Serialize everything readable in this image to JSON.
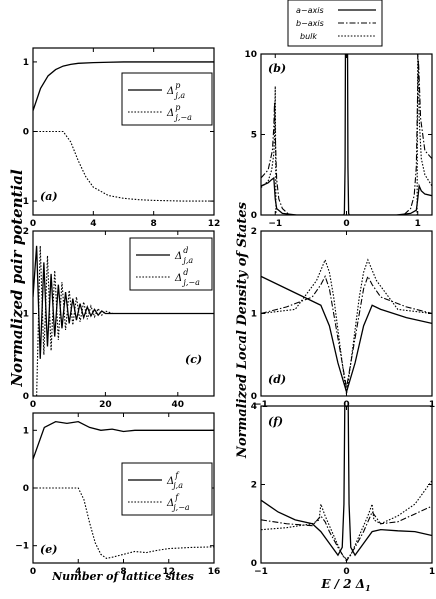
{
  "figure": {
    "left_ylabel": "Normalized pair potential",
    "left_xlabel": "Number of lattice sites",
    "right_ylabel": "Normalized Local Density of States",
    "right_xlabel": "E / 2 Δ",
    "right_xlabel_sub": "1"
  },
  "top_legend": {
    "entries": [
      {
        "label": "a−axis",
        "style": "solid"
      },
      {
        "label": "b−axis",
        "style": "dashdot"
      },
      {
        "label": "bulk",
        "style": "dotted"
      }
    ]
  },
  "chart_data": [
    {
      "id": "a",
      "type": "line",
      "panel_label": "(a)",
      "xlim": [
        0,
        12
      ],
      "ylim": [
        -1.2,
        1.2
      ],
      "xticks": [
        0,
        4,
        8,
        12
      ],
      "yticks": [
        -1,
        0,
        1
      ],
      "legend": [
        {
          "symbol": "Δ",
          "sup": "p",
          "sub": "j,a",
          "style": "solid"
        },
        {
          "symbol": "Δ",
          "sup": "p",
          "sub": "j,−a",
          "style": "dotted"
        }
      ],
      "series": [
        {
          "style": "solid",
          "x": [
            0,
            0.5,
            1,
            1.5,
            2,
            2.5,
            3,
            4,
            5,
            6,
            8,
            10,
            12
          ],
          "y": [
            0.3,
            0.62,
            0.8,
            0.89,
            0.94,
            0.965,
            0.98,
            0.99,
            0.995,
            1,
            1,
            1,
            1
          ]
        },
        {
          "style": "dotted",
          "x": [
            0,
            0.5,
            1,
            1.5,
            2,
            2.5,
            3,
            3.5,
            4,
            5,
            6,
            7,
            8,
            10,
            12
          ],
          "y": [
            0,
            0,
            0,
            0,
            0,
            -0.15,
            -0.42,
            -0.65,
            -0.8,
            -0.92,
            -0.96,
            -0.98,
            -0.99,
            -1,
            -1
          ]
        }
      ]
    },
    {
      "id": "b",
      "type": "line",
      "panel_label": "(b)",
      "xlim": [
        -1.2,
        1.2
      ],
      "ylim": [
        0,
        10
      ],
      "xticks": [
        -1,
        0,
        1
      ],
      "yticks": [
        0,
        5,
        10
      ],
      "series": [
        {
          "style": "solid",
          "x": [
            -1.2,
            -1.1,
            -1.05,
            -1.02,
            -1.0,
            -0.98,
            -0.9,
            -0.7,
            -0.5,
            -0.3,
            -0.1,
            -0.04,
            -0.03,
            -0.02,
            -0.015,
            -0.01,
            0,
            0.01,
            0.015,
            0.02,
            0.03,
            0.04,
            0.1,
            0.3,
            0.5,
            0.7,
            0.9,
            0.98,
            1.0,
            1.02,
            1.05,
            1.1,
            1.2
          ],
          "y": [
            1.8,
            2.0,
            2.2,
            2.3,
            1.0,
            0.4,
            0.1,
            0,
            0,
            0,
            0,
            0,
            0.1,
            3,
            10,
            10,
            10,
            10,
            10,
            3,
            0.1,
            0,
            0,
            0,
            0,
            0,
            0.1,
            0.3,
            1.0,
            1.8,
            1.5,
            1.3,
            1.2
          ]
        },
        {
          "style": "dashdot",
          "x": [
            -1.2,
            -1.1,
            -1.04,
            -1.02,
            -1.01,
            -1.0,
            -0.98,
            -0.95,
            -0.9,
            -0.8,
            -0.6,
            -0.3,
            0,
            0.3,
            0.6,
            0.8,
            0.9,
            0.95,
            0.98,
            1.0,
            1.01,
            1.02,
            1.04,
            1.1,
            1.2
          ],
          "y": [
            2.3,
            2.8,
            4.0,
            5.5,
            7.0,
            5.0,
            2.2,
            1.0,
            0.4,
            0,
            0,
            0,
            0,
            0,
            0,
            0,
            0.4,
            1.2,
            3.0,
            8.0,
            9.6,
            8.5,
            6.0,
            4.0,
            3.5
          ]
        },
        {
          "style": "dotted",
          "x": [
            -1.2,
            -1.1,
            -1.05,
            -1.02,
            -1.01,
            -1.0,
            -0.99,
            -0.98,
            -0.95,
            -0.9,
            -0.5,
            0,
            0.5,
            0.9,
            0.95,
            0.98,
            0.99,
            1.0,
            1.01,
            1.02,
            1.05,
            1.1,
            1.2
          ],
          "y": [
            1.7,
            2.1,
            2.8,
            3.8,
            5.0,
            8.0,
            0,
            0,
            0,
            0,
            0,
            0,
            0,
            0,
            0,
            0,
            0,
            10,
            9.0,
            6.0,
            3.5,
            2.5,
            1.8
          ]
        }
      ]
    },
    {
      "id": "c",
      "type": "line",
      "panel_label": "(c)",
      "xlim": [
        0,
        50
      ],
      "ylim": [
        0,
        2
      ],
      "xticks": [
        0,
        20,
        40
      ],
      "yticks": [
        0,
        1,
        2
      ],
      "legend": [
        {
          "symbol": "Δ",
          "sup": "d",
          "sub": "j,a",
          "style": "solid"
        },
        {
          "symbol": "Δ",
          "sup": "d",
          "sub": "j,−a",
          "style": "dotted"
        }
      ],
      "series": [
        {
          "style": "solid",
          "x": [
            0,
            1,
            2,
            3,
            4,
            5,
            6,
            7,
            8,
            9,
            10,
            11,
            12,
            13,
            14,
            15,
            16,
            17,
            18,
            19,
            20,
            22,
            25,
            30,
            40,
            50
          ],
          "y": [
            1.2,
            1.82,
            0.45,
            1.62,
            0.6,
            1.48,
            0.72,
            1.35,
            0.82,
            1.26,
            0.88,
            1.18,
            0.92,
            1.12,
            0.95,
            1.08,
            0.97,
            1.05,
            0.98,
            1.03,
            1,
            1,
            1,
            1,
            1,
            1
          ]
        },
        {
          "style": "dotted",
          "x": [
            1,
            2,
            3,
            4,
            5,
            6,
            7,
            8,
            9,
            10,
            11,
            12,
            13,
            14,
            15,
            16,
            17,
            18,
            19,
            20,
            22,
            25,
            30,
            40,
            50
          ],
          "y": [
            0,
            1.82,
            0.5,
            1.7,
            0.55,
            1.52,
            0.68,
            1.38,
            0.8,
            1.28,
            0.86,
            1.2,
            0.9,
            1.14,
            0.93,
            1.09,
            0.96,
            1.06,
            0.98,
            1.03,
            1,
            1,
            1,
            1,
            1
          ]
        }
      ]
    },
    {
      "id": "d",
      "type": "line",
      "panel_label": "(d)",
      "xlim": [
        -1,
        1
      ],
      "ylim": [
        0,
        2
      ],
      "xticks": [
        -1,
        0,
        1
      ],
      "yticks": [
        0,
        1,
        2
      ],
      "series": [
        {
          "style": "solid",
          "x": [
            -1,
            -0.7,
            -0.4,
            -0.3,
            -0.2,
            -0.1,
            0,
            0.1,
            0.2,
            0.3,
            0.4,
            0.7,
            1
          ],
          "y": [
            1.45,
            1.3,
            1.15,
            1.1,
            0.85,
            0.4,
            0.05,
            0.4,
            0.85,
            1.1,
            1.05,
            0.95,
            0.88
          ]
        },
        {
          "style": "dashdot",
          "x": [
            -1,
            -0.7,
            -0.4,
            -0.3,
            -0.25,
            -0.2,
            -0.1,
            0,
            0.1,
            0.2,
            0.25,
            0.3,
            0.4,
            0.7,
            1
          ],
          "y": [
            1.0,
            1.08,
            1.2,
            1.35,
            1.45,
            1.3,
            0.7,
            0.1,
            0.7,
            1.3,
            1.45,
            1.35,
            1.2,
            1.08,
            1.0
          ]
        },
        {
          "style": "dotted",
          "x": [
            -1,
            -0.6,
            -0.35,
            -0.25,
            -0.2,
            -0.15,
            -0.05,
            0,
            0.05,
            0.15,
            0.2,
            0.25,
            0.35,
            0.6,
            1
          ],
          "y": [
            1.0,
            1.05,
            1.4,
            1.65,
            1.5,
            1.2,
            0.4,
            0.02,
            0.4,
            1.2,
            1.5,
            1.65,
            1.4,
            1.05,
            1.0
          ]
        }
      ]
    },
    {
      "id": "e",
      "type": "line",
      "panel_label": "(e)",
      "xlim": [
        0,
        16
      ],
      "ylim": [
        -1.3,
        1.3
      ],
      "xticks": [
        0,
        4,
        8,
        12,
        16
      ],
      "yticks": [
        -1,
        0,
        1
      ],
      "legend": [
        {
          "symbol": "Δ",
          "sup": "f",
          "sub": "j,a",
          "style": "solid"
        },
        {
          "symbol": "Δ",
          "sup": "f",
          "sub": "j,−a",
          "style": "dotted"
        }
      ],
      "series": [
        {
          "style": "solid",
          "x": [
            0,
            1,
            2,
            3,
            4,
            5,
            6,
            7,
            8,
            9,
            10,
            12,
            14,
            16
          ],
          "y": [
            0.5,
            1.05,
            1.15,
            1.12,
            1.15,
            1.05,
            1.0,
            1.02,
            0.98,
            1.0,
            1.0,
            1.0,
            1.0,
            1.0
          ]
        },
        {
          "style": "dotted",
          "x": [
            0,
            1,
            2,
            3,
            4,
            4.5,
            5,
            5.5,
            6,
            6.5,
            7,
            8,
            9,
            10,
            11,
            12,
            14,
            16
          ],
          "y": [
            0,
            0,
            0,
            0,
            0,
            -0.2,
            -0.6,
            -0.95,
            -1.15,
            -1.22,
            -1.2,
            -1.15,
            -1.1,
            -1.12,
            -1.08,
            -1.05,
            -1.03,
            -1.02
          ]
        }
      ]
    },
    {
      "id": "f",
      "type": "line",
      "panel_label": "(f)",
      "xlim": [
        -1,
        1
      ],
      "ylim": [
        0,
        4
      ],
      "xticks": [
        -1,
        0,
        1
      ],
      "yticks": [
        0,
        2,
        4
      ],
      "series": [
        {
          "style": "solid",
          "x": [
            -1,
            -0.8,
            -0.6,
            -0.4,
            -0.3,
            -0.2,
            -0.1,
            -0.05,
            -0.03,
            -0.02,
            -0.01,
            0,
            0.01,
            0.02,
            0.03,
            0.05,
            0.1,
            0.2,
            0.3,
            0.4,
            0.6,
            0.8,
            1
          ],
          "y": [
            1.6,
            1.3,
            1.1,
            1.0,
            0.8,
            0.5,
            0.2,
            0.4,
            1.5,
            4,
            4,
            4,
            4,
            4,
            1.5,
            0.4,
            0.2,
            0.5,
            0.8,
            0.85,
            0.82,
            0.8,
            0.7
          ]
        },
        {
          "style": "dashdot",
          "x": [
            -1,
            -0.7,
            -0.4,
            -0.3,
            -0.25,
            -0.2,
            -0.1,
            0,
            0.1,
            0.2,
            0.25,
            0.3,
            0.4,
            0.6,
            0.8,
            1
          ],
          "y": [
            1.1,
            1.0,
            0.95,
            1.2,
            1.05,
            0.8,
            0.4,
            0.05,
            0.4,
            0.8,
            1.05,
            1.3,
            1.0,
            1.05,
            1.25,
            1.45
          ]
        },
        {
          "style": "dotted",
          "x": [
            -1,
            -0.7,
            -0.4,
            -0.32,
            -0.3,
            -0.25,
            -0.15,
            -0.05,
            0,
            0.05,
            0.15,
            0.25,
            0.3,
            0.32,
            0.4,
            0.6,
            0.8,
            1
          ],
          "y": [
            0.85,
            0.9,
            1.0,
            1.1,
            1.5,
            1.2,
            0.7,
            0.2,
            0.1,
            0.2,
            0.7,
            1.2,
            1.5,
            1.1,
            1.0,
            1.2,
            1.5,
            2.1
          ]
        }
      ]
    }
  ]
}
